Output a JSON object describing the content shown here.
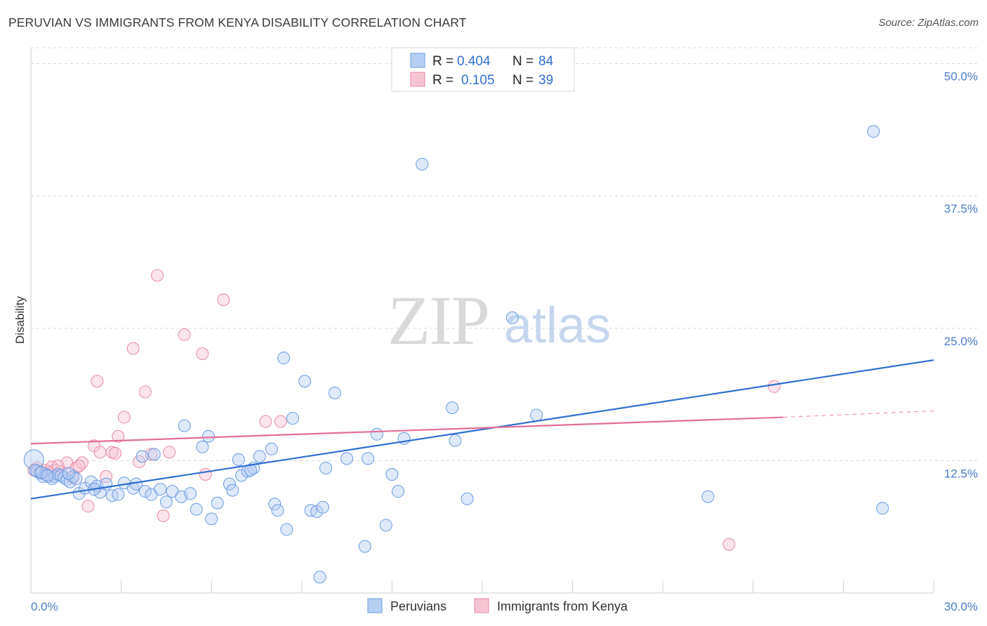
{
  "header": {
    "title": "PERUVIAN VS IMMIGRANTS FROM KENYA DISABILITY CORRELATION CHART",
    "source": "Source: ZipAtlas.com"
  },
  "watermark": {
    "zip": "ZIP",
    "atlas": "atlas"
  },
  "legend": {
    "rows": [
      {
        "r_label": "R = ",
        "r_value": "0.404",
        "n_label": "N = ",
        "n_value": "84"
      },
      {
        "r_label": "R = ",
        "r_value": "0.105",
        "n_label": "N = ",
        "n_value": "39"
      }
    ]
  },
  "colors": {
    "blue_fill": "#b7cff3",
    "blue_stroke": "#6a9be0",
    "blue_line": "#2f6fd1",
    "pink_fill": "#f7c4d3",
    "pink_stroke": "#e88aa7",
    "pink_line": "#e36e98",
    "tick_text": "#4a7cc7",
    "grid": "#d8d8d8"
  },
  "chart_data": {
    "type": "scatter",
    "title": "PERUVIAN VS IMMIGRANTS FROM KENYA DISABILITY CORRELATION CHART",
    "xlabel": "",
    "ylabel": "Disability",
    "xlim": [
      0,
      30
    ],
    "ylim": [
      0,
      51.5
    ],
    "x_tick_labels": [
      "0.0%",
      "30.0%"
    ],
    "y_ticks": [
      12.5,
      25.0,
      37.5,
      50.0
    ],
    "y_tick_labels": [
      "12.5%",
      "25.0%",
      "37.5%",
      "50.0%"
    ],
    "grid": true,
    "legend_position": "top-center",
    "series": [
      {
        "name": "Peruvians",
        "color": "#6a9be0",
        "R": 0.404,
        "N": 84,
        "trend": {
          "x": [
            0,
            30
          ],
          "y": [
            8.9,
            22.0
          ]
        },
        "points": [
          [
            0.1,
            12.6
          ],
          [
            0.2,
            11.5
          ],
          [
            0.3,
            11.3
          ],
          [
            0.4,
            11.0
          ],
          [
            0.5,
            11.2
          ],
          [
            0.6,
            11.0
          ],
          [
            0.7,
            10.8
          ],
          [
            0.8,
            11.0
          ],
          [
            0.9,
            11.2
          ],
          [
            1.0,
            11.1
          ],
          [
            1.1,
            10.9
          ],
          [
            1.2,
            10.7
          ],
          [
            1.3,
            10.5
          ],
          [
            1.4,
            11.0
          ],
          [
            1.5,
            10.8
          ],
          [
            1.6,
            9.4
          ],
          [
            1.8,
            9.9
          ],
          [
            2.0,
            10.5
          ],
          [
            2.2,
            10.1
          ],
          [
            2.3,
            9.5
          ],
          [
            2.5,
            10.3
          ],
          [
            2.7,
            9.2
          ],
          [
            2.9,
            9.3
          ],
          [
            3.1,
            10.4
          ],
          [
            3.4,
            9.9
          ],
          [
            3.5,
            10.3
          ],
          [
            3.8,
            9.6
          ],
          [
            4.0,
            9.3
          ],
          [
            4.3,
            9.8
          ],
          [
            4.5,
            8.6
          ],
          [
            4.7,
            9.6
          ],
          [
            5.0,
            9.1
          ],
          [
            5.3,
            9.4
          ],
          [
            5.5,
            7.9
          ],
          [
            5.7,
            13.8
          ],
          [
            5.9,
            14.8
          ],
          [
            6.2,
            8.5
          ],
          [
            6.6,
            10.3
          ],
          [
            6.7,
            9.7
          ],
          [
            6.9,
            12.6
          ],
          [
            7.0,
            11.1
          ],
          [
            7.2,
            11.5
          ],
          [
            7.4,
            11.8
          ],
          [
            7.6,
            12.9
          ],
          [
            8.0,
            13.6
          ],
          [
            8.1,
            8.4
          ],
          [
            8.2,
            7.8
          ],
          [
            8.4,
            22.2
          ],
          [
            8.5,
            6.0
          ],
          [
            8.7,
            16.5
          ],
          [
            9.1,
            20.0
          ],
          [
            9.3,
            7.8
          ],
          [
            9.5,
            7.7
          ],
          [
            9.7,
            8.1
          ],
          [
            9.8,
            11.8
          ],
          [
            9.6,
            1.5
          ],
          [
            10.1,
            18.9
          ],
          [
            10.5,
            12.7
          ],
          [
            11.2,
            12.7
          ],
          [
            11.1,
            4.4
          ],
          [
            11.5,
            15.0
          ],
          [
            11.8,
            6.4
          ],
          [
            12.0,
            11.2
          ],
          [
            12.2,
            9.6
          ],
          [
            12.4,
            14.6
          ],
          [
            13.0,
            40.5
          ],
          [
            14.0,
            17.5
          ],
          [
            14.1,
            14.4
          ],
          [
            14.5,
            8.9
          ],
          [
            16.0,
            26.0
          ],
          [
            16.8,
            16.8
          ],
          [
            22.5,
            9.1
          ],
          [
            28.0,
            43.6
          ],
          [
            28.3,
            8.0
          ],
          [
            0.15,
            11.6
          ],
          [
            0.35,
            11.4
          ],
          [
            0.55,
            11.1
          ],
          [
            1.25,
            11.3
          ],
          [
            2.1,
            9.8
          ],
          [
            3.7,
            12.9
          ],
          [
            4.1,
            13.1
          ],
          [
            5.1,
            15.8
          ],
          [
            6.0,
            7.0
          ],
          [
            7.3,
            11.6
          ]
        ]
      },
      {
        "name": "Immigrants from Kenya",
        "color": "#e88aa7",
        "R": 0.105,
        "N": 39,
        "trend": {
          "x": [
            0,
            25
          ],
          "y": [
            14.1,
            16.6
          ]
        },
        "trend_dashed_extension": {
          "x": [
            25,
            30
          ],
          "y": [
            16.6,
            17.2
          ]
        },
        "points": [
          [
            0.1,
            11.6
          ],
          [
            0.2,
            11.8
          ],
          [
            0.3,
            11.5
          ],
          [
            0.4,
            11.3
          ],
          [
            0.5,
            11.6
          ],
          [
            0.6,
            11.4
          ],
          [
            0.7,
            11.9
          ],
          [
            0.8,
            11.6
          ],
          [
            1.0,
            11.5
          ],
          [
            1.2,
            12.3
          ],
          [
            1.4,
            10.9
          ],
          [
            1.5,
            11.8
          ],
          [
            1.7,
            12.3
          ],
          [
            1.9,
            8.2
          ],
          [
            2.1,
            13.9
          ],
          [
            2.3,
            13.3
          ],
          [
            2.5,
            11.0
          ],
          [
            2.7,
            13.3
          ],
          [
            2.9,
            14.8
          ],
          [
            3.1,
            16.6
          ],
          [
            3.4,
            23.1
          ],
          [
            3.6,
            12.4
          ],
          [
            3.8,
            19.0
          ],
          [
            4.0,
            13.1
          ],
          [
            4.2,
            30.0
          ],
          [
            4.4,
            7.3
          ],
          [
            4.6,
            13.3
          ],
          [
            5.1,
            24.4
          ],
          [
            5.7,
            22.6
          ],
          [
            5.8,
            11.2
          ],
          [
            6.4,
            27.7
          ],
          [
            7.8,
            16.2
          ],
          [
            8.3,
            16.2
          ],
          [
            24.7,
            19.5
          ],
          [
            23.2,
            4.6
          ],
          [
            0.9,
            12.0
          ],
          [
            1.6,
            12.0
          ],
          [
            2.2,
            20.0
          ],
          [
            2.8,
            13.2
          ]
        ]
      }
    ]
  },
  "bottom_legend": {
    "items": [
      {
        "label": "Peruvians"
      },
      {
        "label": "Immigrants from Kenya"
      }
    ]
  }
}
